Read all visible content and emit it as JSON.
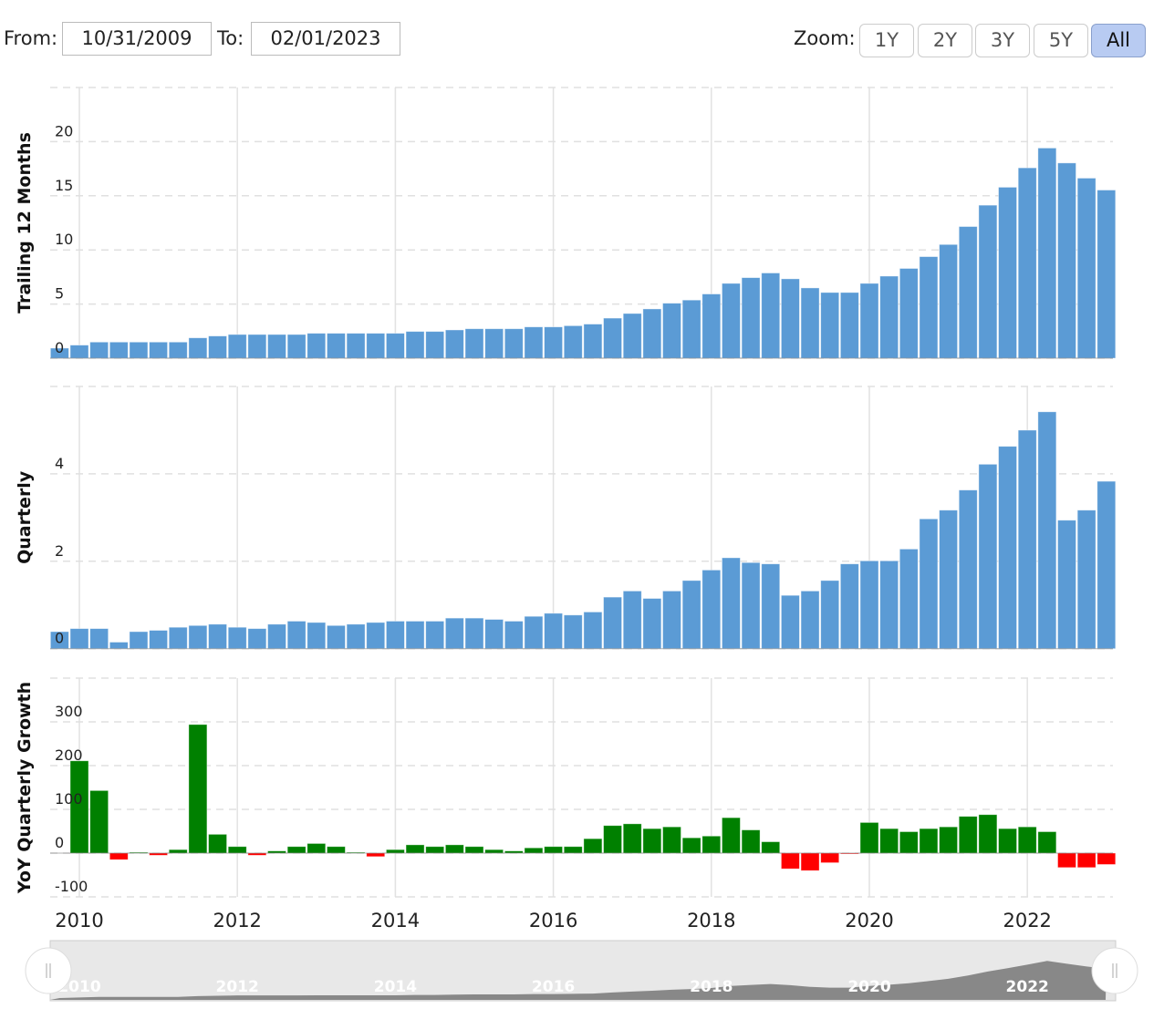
{
  "controls": {
    "from_label": "From:",
    "from_value": "10/31/2009",
    "to_label": "To:",
    "to_value": "02/01/2023",
    "zoom_label": "Zoom:",
    "zoom_buttons": [
      {
        "label": "1Y",
        "active": false
      },
      {
        "label": "2Y",
        "active": false
      },
      {
        "label": "3Y",
        "active": false
      },
      {
        "label": "5Y",
        "active": false
      },
      {
        "label": "All",
        "active": true
      }
    ]
  },
  "colors": {
    "bar": "#5b9bd5",
    "positive": "#008000",
    "negative": "#ff0000",
    "navigator_area": "#888888",
    "navigator_bg": "#e8e8e8"
  },
  "chart_data": {
    "type": "bar",
    "x_tick_labels": [
      "2010",
      "2012",
      "2014",
      "2016",
      "2018",
      "2020",
      "2022"
    ],
    "dates": [
      "2009-10",
      "2010-01",
      "2010-04",
      "2010-07",
      "2010-10",
      "2011-01",
      "2011-04",
      "2011-07",
      "2011-10",
      "2012-01",
      "2012-04",
      "2012-07",
      "2012-10",
      "2013-01",
      "2013-04",
      "2013-07",
      "2013-10",
      "2014-01",
      "2014-04",
      "2014-07",
      "2014-10",
      "2015-01",
      "2015-04",
      "2015-07",
      "2015-10",
      "2016-01",
      "2016-04",
      "2016-07",
      "2016-10",
      "2017-01",
      "2017-04",
      "2017-07",
      "2017-10",
      "2018-01",
      "2018-04",
      "2018-07",
      "2018-10",
      "2019-01",
      "2019-04",
      "2019-07",
      "2019-10",
      "2020-01",
      "2020-04",
      "2020-07",
      "2020-10",
      "2021-01",
      "2021-04",
      "2021-07",
      "2021-10",
      "2022-01",
      "2022-04",
      "2022-07",
      "2022-10",
      "2023-01"
    ],
    "panels": [
      {
        "ylabel": "Trailing 12 Months",
        "ylim": [
          0,
          25
        ],
        "yticks": [
          "0",
          "5",
          "10",
          "15",
          "20"
        ],
        "values": [
          0.93,
          1.21,
          1.49,
          1.49,
          1.49,
          1.49,
          1.49,
          1.88,
          2.05,
          2.19,
          2.19,
          2.19,
          2.19,
          2.3,
          2.3,
          2.3,
          2.3,
          2.3,
          2.47,
          2.47,
          2.61,
          2.72,
          2.72,
          2.72,
          2.89,
          2.89,
          3.0,
          3.15,
          3.7,
          4.13,
          4.55,
          5.08,
          5.37,
          5.93,
          6.91,
          7.44,
          7.87,
          7.33,
          6.49,
          6.07,
          6.07,
          6.91,
          7.58,
          8.29,
          9.38,
          10.5,
          12.16,
          14.13,
          15.79,
          17.58,
          19.41,
          18.03,
          16.63,
          15.53
        ]
      },
      {
        "ylabel": "Quarterly",
        "ylim": [
          0,
          6
        ],
        "yticks": [
          "0",
          "2",
          "4"
        ],
        "values": [
          0.39,
          0.46,
          0.46,
          0.15,
          0.39,
          0.42,
          0.49,
          0.53,
          0.56,
          0.49,
          0.46,
          0.56,
          0.63,
          0.6,
          0.53,
          0.56,
          0.6,
          0.63,
          0.63,
          0.63,
          0.7,
          0.7,
          0.67,
          0.63,
          0.74,
          0.81,
          0.77,
          0.84,
          1.18,
          1.32,
          1.15,
          1.32,
          1.56,
          1.8,
          2.08,
          1.97,
          1.94,
          1.22,
          1.32,
          1.56,
          1.94,
          2.01,
          2.01,
          2.28,
          2.97,
          3.17,
          3.63,
          4.22,
          4.63,
          5.0,
          5.42,
          2.94,
          3.17,
          3.83
        ]
      },
      {
        "ylabel": "YoY Quarterly Growth",
        "ylim": [
          -100,
          400
        ],
        "yticks": [
          "-100",
          "0",
          "100",
          "200",
          "300"
        ],
        "values": [
          null,
          211,
          143,
          -15,
          2,
          -5,
          8,
          294,
          43,
          15,
          -5,
          5,
          15,
          22,
          15,
          2,
          -8,
          8,
          19,
          15,
          19,
          15,
          8,
          5,
          12,
          15,
          15,
          33,
          63,
          67,
          56,
          60,
          35,
          39,
          81,
          53,
          26,
          -36,
          -40,
          -22,
          -1,
          70,
          56,
          49,
          56,
          60,
          84,
          88,
          56,
          60,
          49,
          -33,
          -33,
          -26
        ]
      }
    ],
    "navigator": {
      "x_tick_labels": [
        "2010",
        "2012",
        "2014",
        "2016",
        "2018",
        "2020",
        "2022"
      ],
      "range": [
        "10/31/2009",
        "02/01/2023"
      ]
    }
  }
}
